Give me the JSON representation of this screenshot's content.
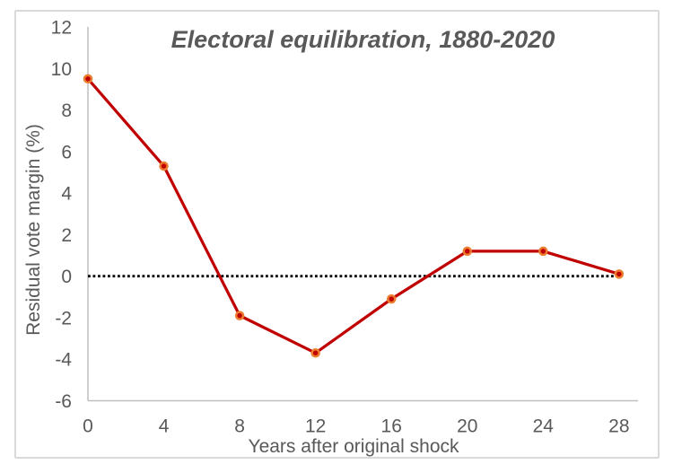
{
  "chart_data": {
    "type": "line",
    "title": "Electoral equilibration, 1880-2020",
    "xlabel": "Years after original shock",
    "ylabel": "Residual vote margin (%)",
    "x": [
      0,
      4,
      8,
      12,
      16,
      20,
      24,
      28
    ],
    "series": [
      {
        "name": "Residual vote margin (%)",
        "values": [
          9.5,
          5.3,
          -1.9,
          -3.7,
          -1.1,
          1.2,
          1.2,
          0.1
        ]
      }
    ],
    "xticks": [
      0,
      4,
      8,
      12,
      16,
      20,
      24,
      28
    ],
    "yticks": [
      12,
      10,
      8,
      6,
      4,
      2,
      0,
      -2,
      -4,
      -6
    ],
    "xlim": [
      0,
      29
    ],
    "ylim": [
      -6,
      12
    ],
    "grid": false,
    "legend": "none",
    "zero_reference_line": {
      "y": 0,
      "style": "dotted"
    },
    "colors": {
      "series_line": "#C00000",
      "marker_fill": "#C00000",
      "marker_ring": "#ED7D31",
      "axis_line": "#BFBFBF",
      "text": "#595959",
      "frame_border": "#D9D9D9",
      "zero_line": "#000000"
    }
  }
}
